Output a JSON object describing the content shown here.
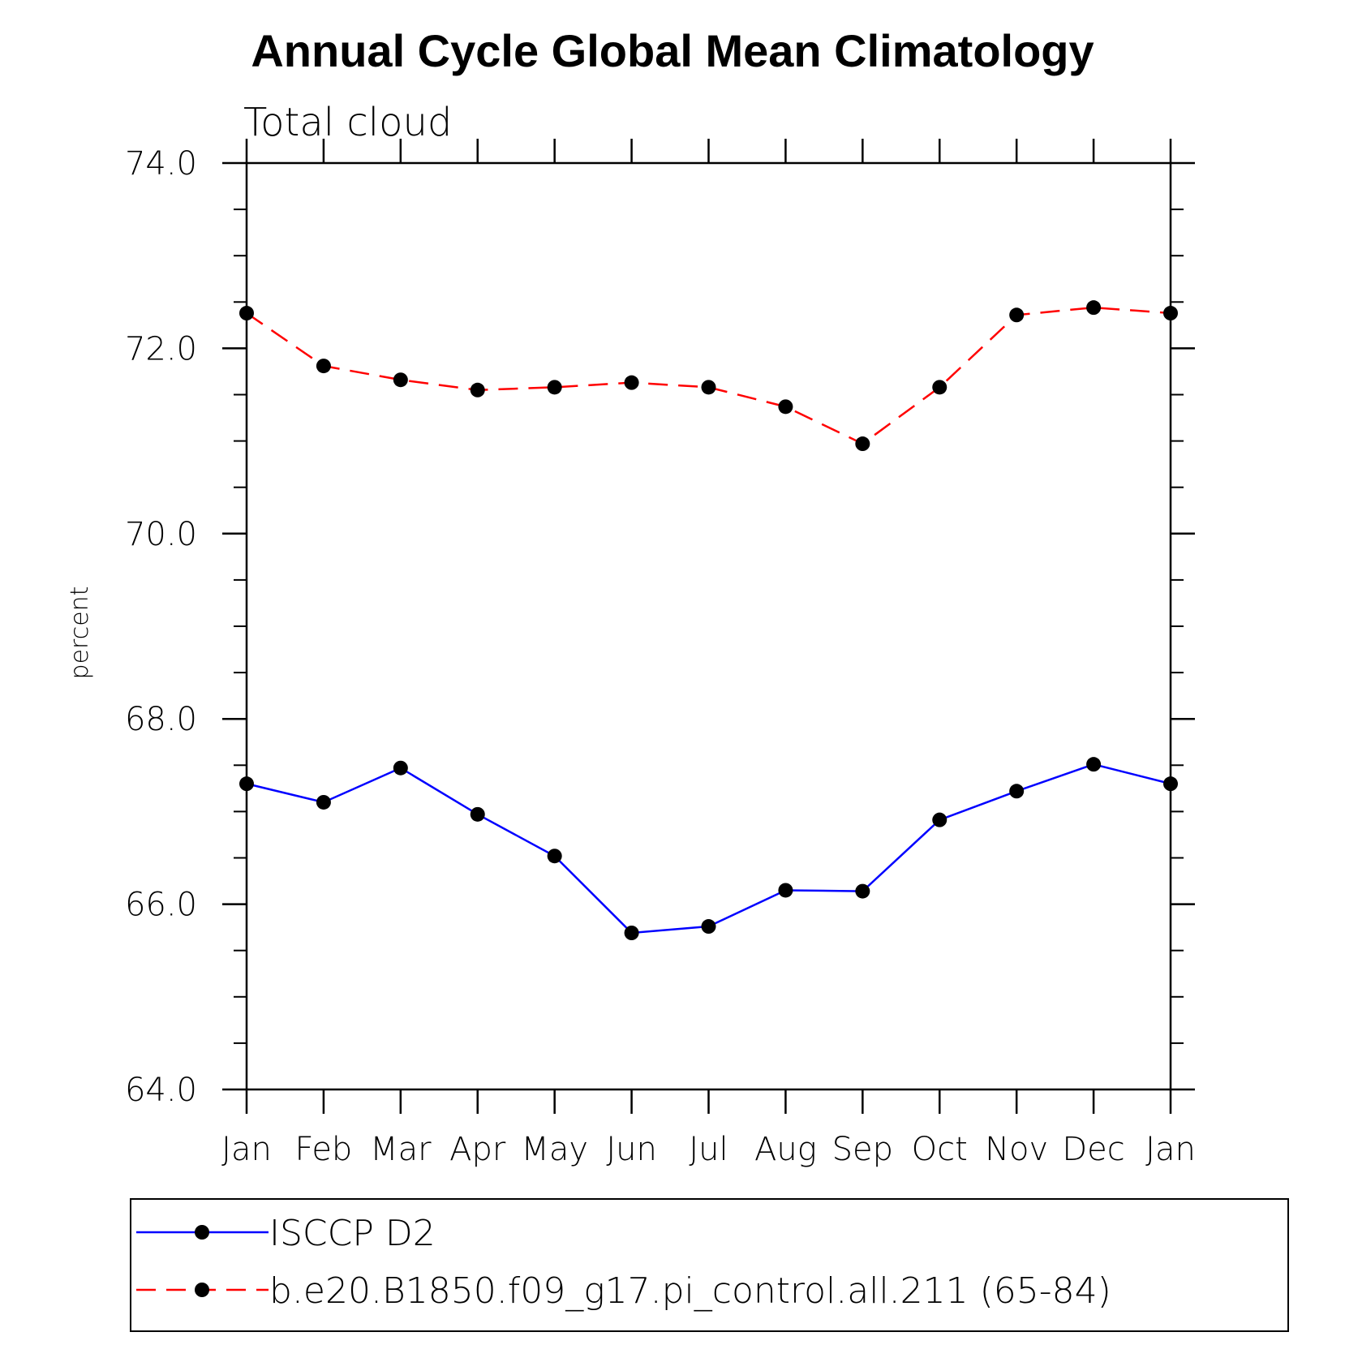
{
  "chart_data": {
    "type": "line",
    "title": "Annual Cycle Global Mean Climatology",
    "subtitle": "Total cloud",
    "xlabel": "",
    "ylabel": "percent",
    "categories": [
      "Jan",
      "Feb",
      "Mar",
      "Apr",
      "May",
      "Jun",
      "Jul",
      "Aug",
      "Sep",
      "Oct",
      "Nov",
      "Dec",
      "Jan"
    ],
    "ylim": [
      64.0,
      74.0
    ],
    "yticks": [
      64.0,
      66.0,
      68.0,
      70.0,
      72.0,
      74.0
    ],
    "ytick_labels": [
      "64.0",
      "66.0",
      "68.0",
      "70.0",
      "72.0",
      "74.0"
    ],
    "minor_ytick_step": 0.5,
    "grid": false,
    "legend_position": "bottom",
    "series": [
      {
        "name": "ISCCP D2",
        "color": "#0000ff",
        "line_style": "solid",
        "marker": "filled-circle",
        "values": [
          67.3,
          67.1,
          67.47,
          66.97,
          66.52,
          65.69,
          65.76,
          66.15,
          66.14,
          66.91,
          67.22,
          67.51,
          67.3
        ]
      },
      {
        "name": "b.e20.B1850.f09_g17.pi_control.all.211 (65-84)",
        "color": "#ff0000",
        "line_style": "dashed",
        "marker": "filled-circle",
        "values": [
          72.38,
          71.81,
          71.66,
          71.55,
          71.58,
          71.63,
          71.58,
          71.37,
          70.97,
          71.58,
          72.36,
          72.44,
          72.38
        ]
      }
    ]
  }
}
